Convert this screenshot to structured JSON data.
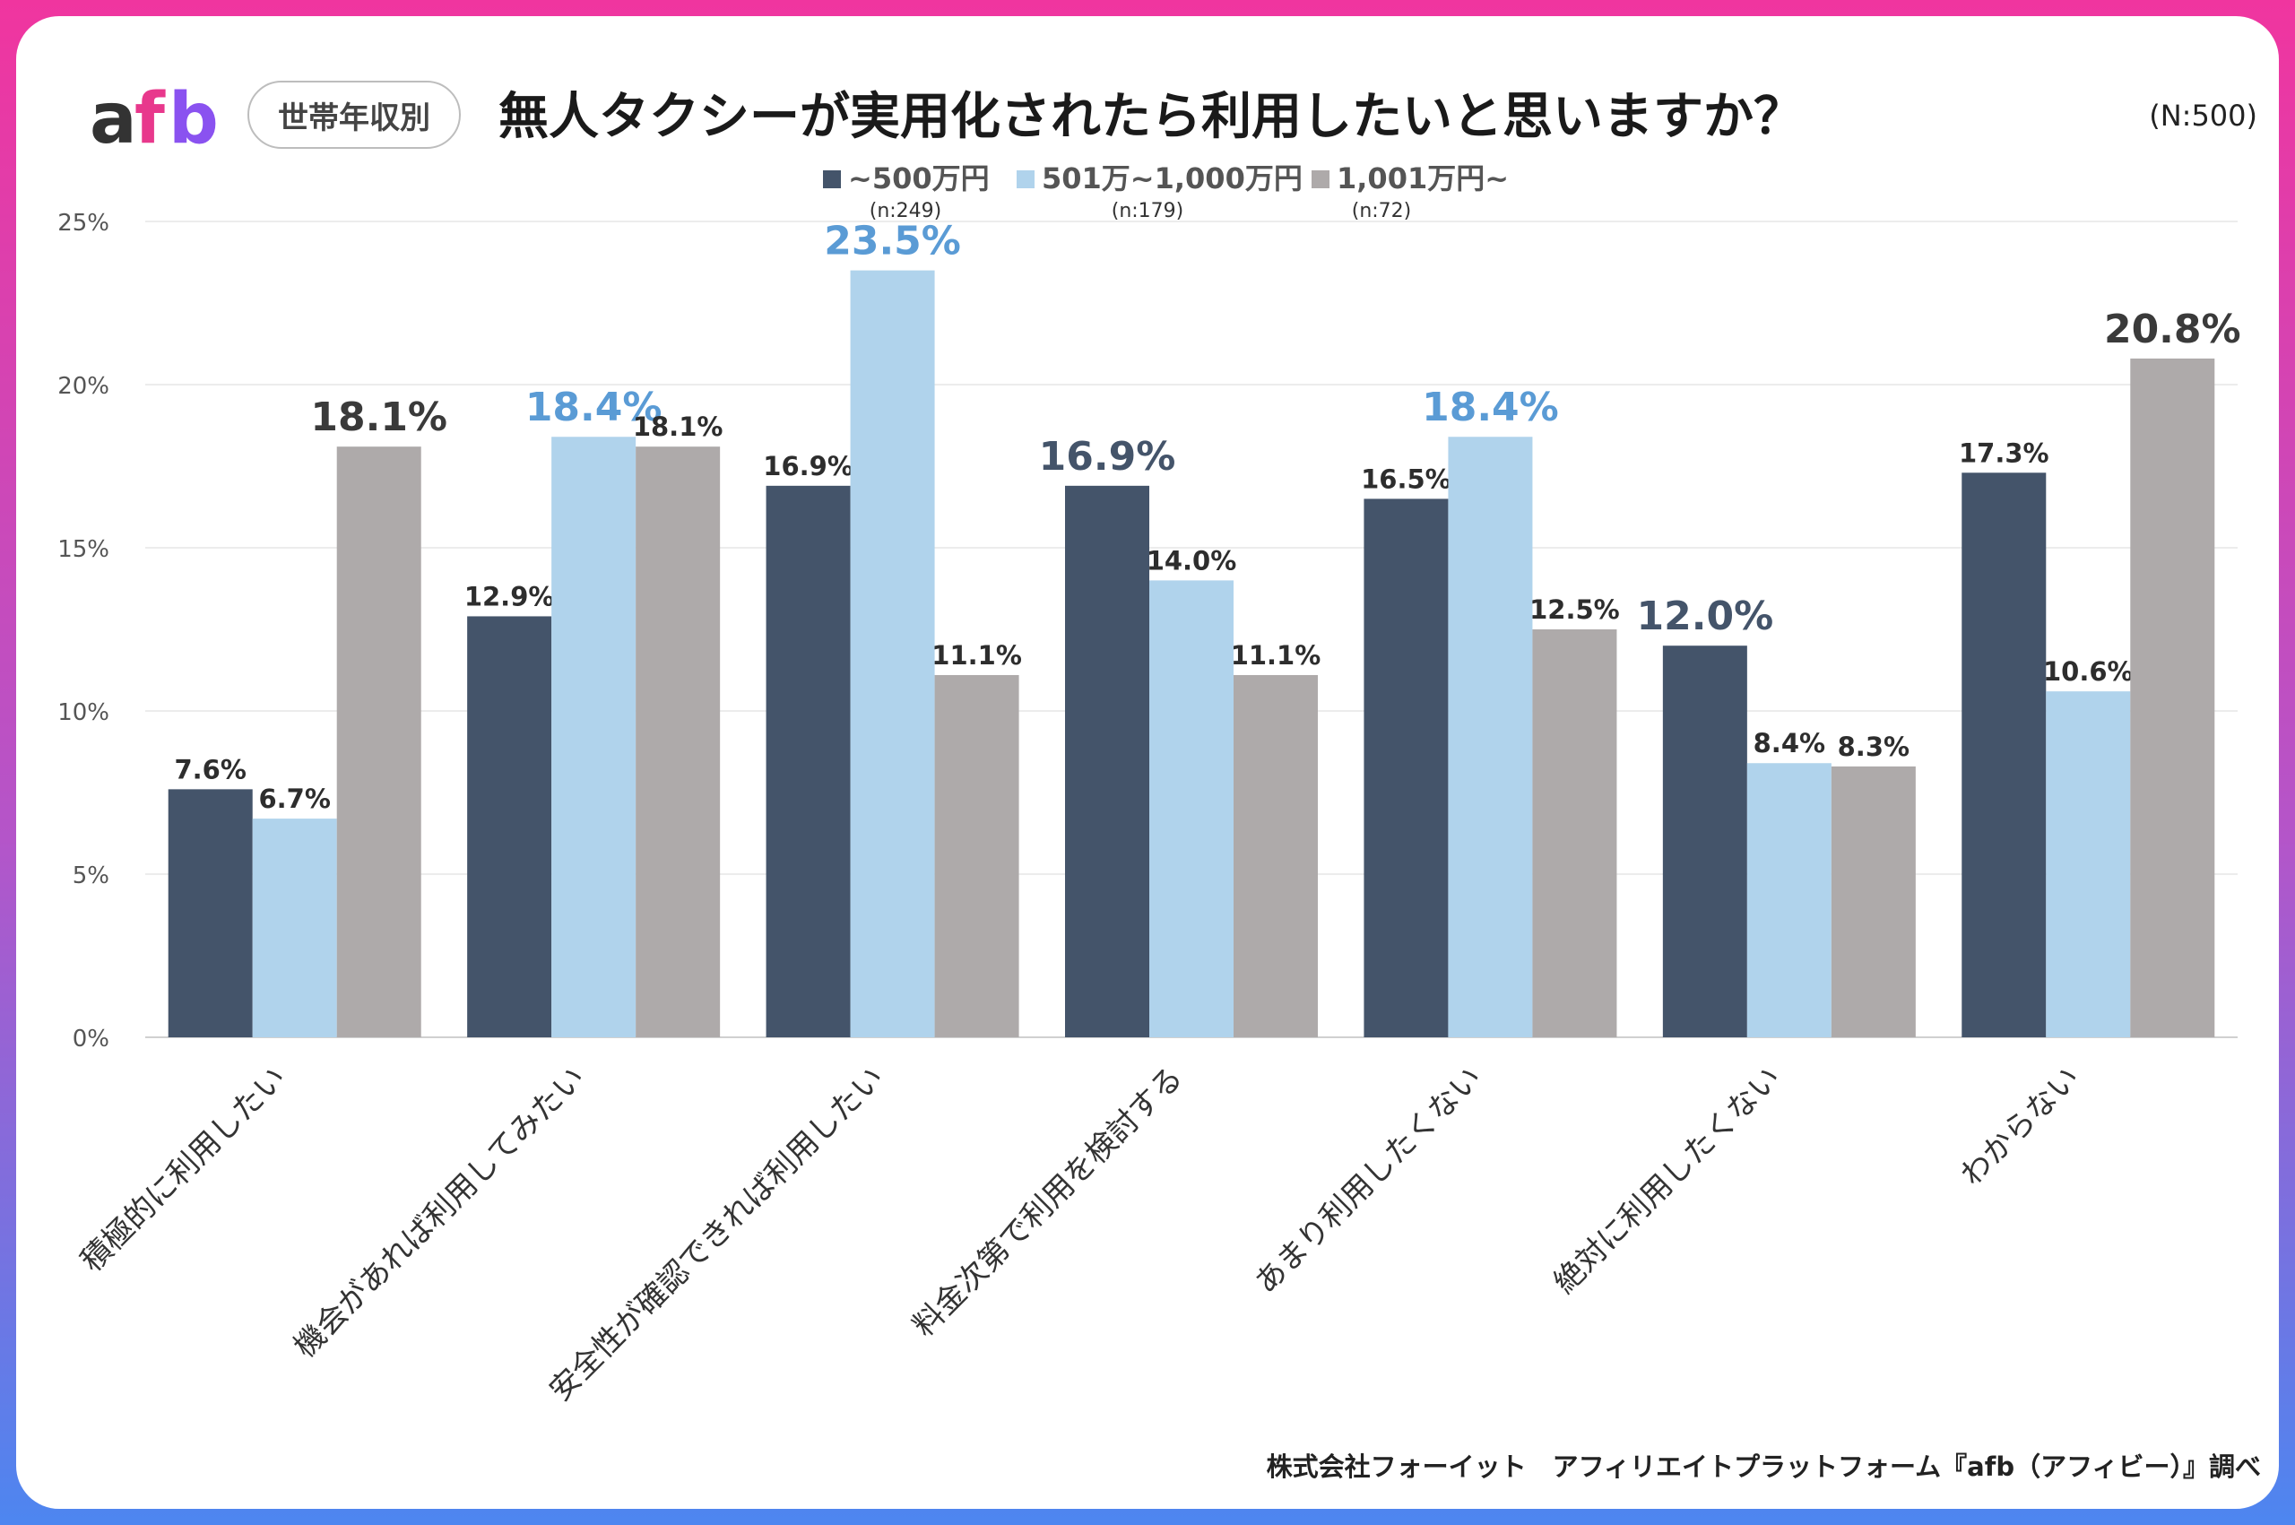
{
  "header": {
    "logo_a": "a",
    "logo_f": "f",
    "logo_b": "b",
    "badge": "世帯年収別",
    "title": "無人タクシーが実用化されたら利用したいと思いますか？",
    "n_total": "(N:500)"
  },
  "footer": {
    "source": "株式会社フォーイット　アフィリエイトプラットフォーム『afb（アフィビー）』調べ"
  },
  "colors": {
    "series1": "#44546a",
    "series2": "#b0d3ec",
    "series3": "#aeaaaa",
    "highlight_blue": "#5a9bd5",
    "highlight_dark": "#44546a",
    "highlight_gray": "#3a3a3a",
    "logo_a": "#333333",
    "logo_f": "#e8388c",
    "logo_b": "#8a52f0"
  },
  "chart_data": {
    "type": "bar",
    "categories": [
      "積極的に利用したい",
      "機会があれば利用してみたい",
      "安全性が確認できれば利用したい",
      "料金次第で利用を検討する",
      "あまり利用したくない",
      "絶対に利用したくない",
      "わからない"
    ],
    "series": [
      {
        "name": "~500万円",
        "n": "(n:249)",
        "values": [
          7.6,
          12.9,
          16.9,
          16.9,
          16.5,
          12.0,
          17.3
        ]
      },
      {
        "name": "501万~1,000万円",
        "n": "(n:179)",
        "values": [
          6.7,
          18.4,
          23.5,
          14.0,
          18.4,
          8.4,
          10.6
        ]
      },
      {
        "name": "1,001万円~",
        "n": "(n:72)",
        "values": [
          18.1,
          18.1,
          11.1,
          11.1,
          12.5,
          8.3,
          20.8
        ]
      }
    ],
    "highlight": [
      {
        "category": 0,
        "series": 2
      },
      {
        "category": 1,
        "series": 1
      },
      {
        "category": 2,
        "series": 1
      },
      {
        "category": 3,
        "series": 0
      },
      {
        "category": 4,
        "series": 1
      },
      {
        "category": 5,
        "series": 0
      },
      {
        "category": 6,
        "series": 2
      }
    ],
    "ylim": [
      0,
      25
    ],
    "yticks": [
      "0%",
      "5%",
      "10%",
      "15%",
      "20%",
      "25%"
    ],
    "value_suffix": "%",
    "legend_position": "top-center",
    "grid": true
  }
}
